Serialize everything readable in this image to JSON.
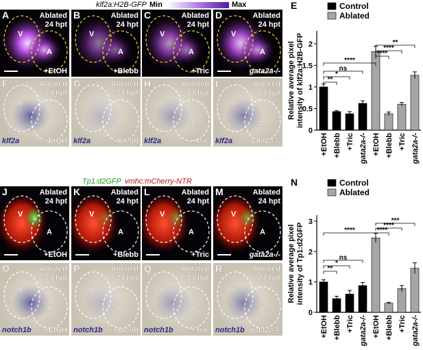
{
  "headers": {
    "top": {
      "reporter": "klf2a:H2B-GFP",
      "min": "Min",
      "max": "Max"
    },
    "bottom": {
      "reporter_green": "Tp1:d2GFP",
      "reporter_red": "vmhc:mCherry-NTR"
    }
  },
  "image_rows": [
    {
      "kind": "fluor-purple",
      "panels": [
        {
          "letter": "A",
          "labels": [
            "Ablated",
            "24 hpt"
          ],
          "chambers": [
            "V",
            "A"
          ],
          "condition": "+EtOH"
        },
        {
          "letter": "B",
          "labels": [
            "Ablated",
            "24 hpt"
          ],
          "chambers": [
            "V",
            "A"
          ],
          "condition": "+Blebb"
        },
        {
          "letter": "C",
          "labels": [
            "Ablated",
            "24 hpt"
          ],
          "chambers": [
            "V",
            "A"
          ],
          "condition": "+Tric"
        },
        {
          "letter": "D",
          "labels": [
            "Ablated",
            "24 hpt"
          ],
          "chambers": [
            "V",
            "A"
          ],
          "condition": "gata2a-/-"
        }
      ]
    },
    {
      "kind": "ish",
      "gene": "klf2a",
      "panels": [
        {
          "letter": "F",
          "labels": [
            "Ablated",
            "24 hpt"
          ],
          "chambers": [
            "V",
            "A"
          ],
          "condition": "+EtOH"
        },
        {
          "letter": "G",
          "labels": [
            "Ablated",
            "24 hpt"
          ],
          "chambers": [
            "V",
            "A"
          ],
          "condition": "+Blebb"
        },
        {
          "letter": "H",
          "labels": [
            "Ablated",
            "24 hpt"
          ],
          "chambers": [
            "V",
            "A"
          ],
          "condition": "+Tric"
        },
        {
          "letter": "I",
          "labels": [
            "Ablated",
            "24 hpt"
          ],
          "chambers": [
            "V",
            "A"
          ],
          "condition": "gata2a-/-"
        }
      ]
    },
    {
      "kind": "fluor-red",
      "panels": [
        {
          "letter": "J",
          "labels": [
            "Ablated",
            "24 hpt"
          ],
          "chambers": [
            "V",
            "A"
          ],
          "condition": "+EtOH"
        },
        {
          "letter": "K",
          "labels": [
            "Ablated",
            "24 hpt"
          ],
          "chambers": [
            "V",
            "A"
          ],
          "condition": "+Blebb"
        },
        {
          "letter": "L",
          "labels": [
            "Ablated",
            "24 hpt"
          ],
          "chambers": [
            "V",
            "A"
          ],
          "condition": "+Tric"
        },
        {
          "letter": "M",
          "labels": [
            "Ablated",
            "24 hpt"
          ],
          "chambers": [
            "V",
            "A"
          ],
          "condition": "gata2a-/-"
        }
      ]
    },
    {
      "kind": "ish",
      "gene": "notch1b",
      "panels": [
        {
          "letter": "O",
          "labels": [
            "Ablated",
            "24 hpt"
          ],
          "chambers": [
            "V",
            "A"
          ],
          "condition": "+EtOH"
        },
        {
          "letter": "P",
          "labels": [
            "Ablated",
            "24 hpt"
          ],
          "chambers": [
            "V",
            "A"
          ],
          "condition": "+Blebb"
        },
        {
          "letter": "Q",
          "labels": [
            "Ablated",
            "24 hpt"
          ],
          "chambers": [
            "V",
            "A"
          ],
          "condition": "+Tric"
        },
        {
          "letter": "R",
          "labels": [
            "Ablated",
            "24 hpt"
          ],
          "chambers": [
            "V",
            "A"
          ],
          "condition": "gata2a-/-"
        }
      ]
    }
  ],
  "chart_data": [
    {
      "type": "bar",
      "letter": "E",
      "ylabel": [
        "Relative average pixel",
        "intensity of klf2a:H2B-GFP"
      ],
      "categories": [
        "+EtOH",
        "+Blebb",
        "+Tric",
        "gata2a-/-"
      ],
      "series": [
        {
          "name": "Control",
          "color": "#000000",
          "values": [
            1.0,
            0.43,
            0.38,
            0.62
          ],
          "errors": [
            0.07,
            0.02,
            0.05,
            0.06
          ]
        },
        {
          "name": "Ablated",
          "color": "#a6a6a6",
          "values": [
            1.82,
            0.38,
            0.6,
            1.27
          ],
          "errors": [
            0.12,
            0.04,
            0.04,
            0.08
          ]
        }
      ],
      "ylim": [
        0,
        2.3
      ],
      "yticks": [
        0,
        0.5,
        1,
        1.5,
        2
      ],
      "annotations": [
        "****",
        "ns",
        "*",
        "**",
        "**",
        "****",
        "****"
      ]
    },
    {
      "type": "bar",
      "letter": "N",
      "ylabel": [
        "Relative average pixel",
        "intensity of Tp1:d2GFP"
      ],
      "categories": [
        "+EtOH",
        "+Blebb",
        "+Tric",
        "gata2a-/-"
      ],
      "series": [
        {
          "name": "Control",
          "color": "#000000",
          "values": [
            1.0,
            0.45,
            0.6,
            0.88
          ],
          "errors": [
            0.07,
            0.08,
            0.12,
            0.1
          ]
        },
        {
          "name": "Ablated",
          "color": "#a6a6a6",
          "values": [
            2.45,
            0.3,
            0.78,
            1.45
          ],
          "errors": [
            0.15,
            0.03,
            0.1,
            0.18
          ]
        }
      ],
      "ylim": [
        0,
        3.2
      ],
      "yticks": [
        0,
        1,
        2,
        3
      ],
      "annotations": [
        "****",
        "ns",
        "*",
        "**",
        "***",
        "****",
        "****"
      ]
    }
  ]
}
